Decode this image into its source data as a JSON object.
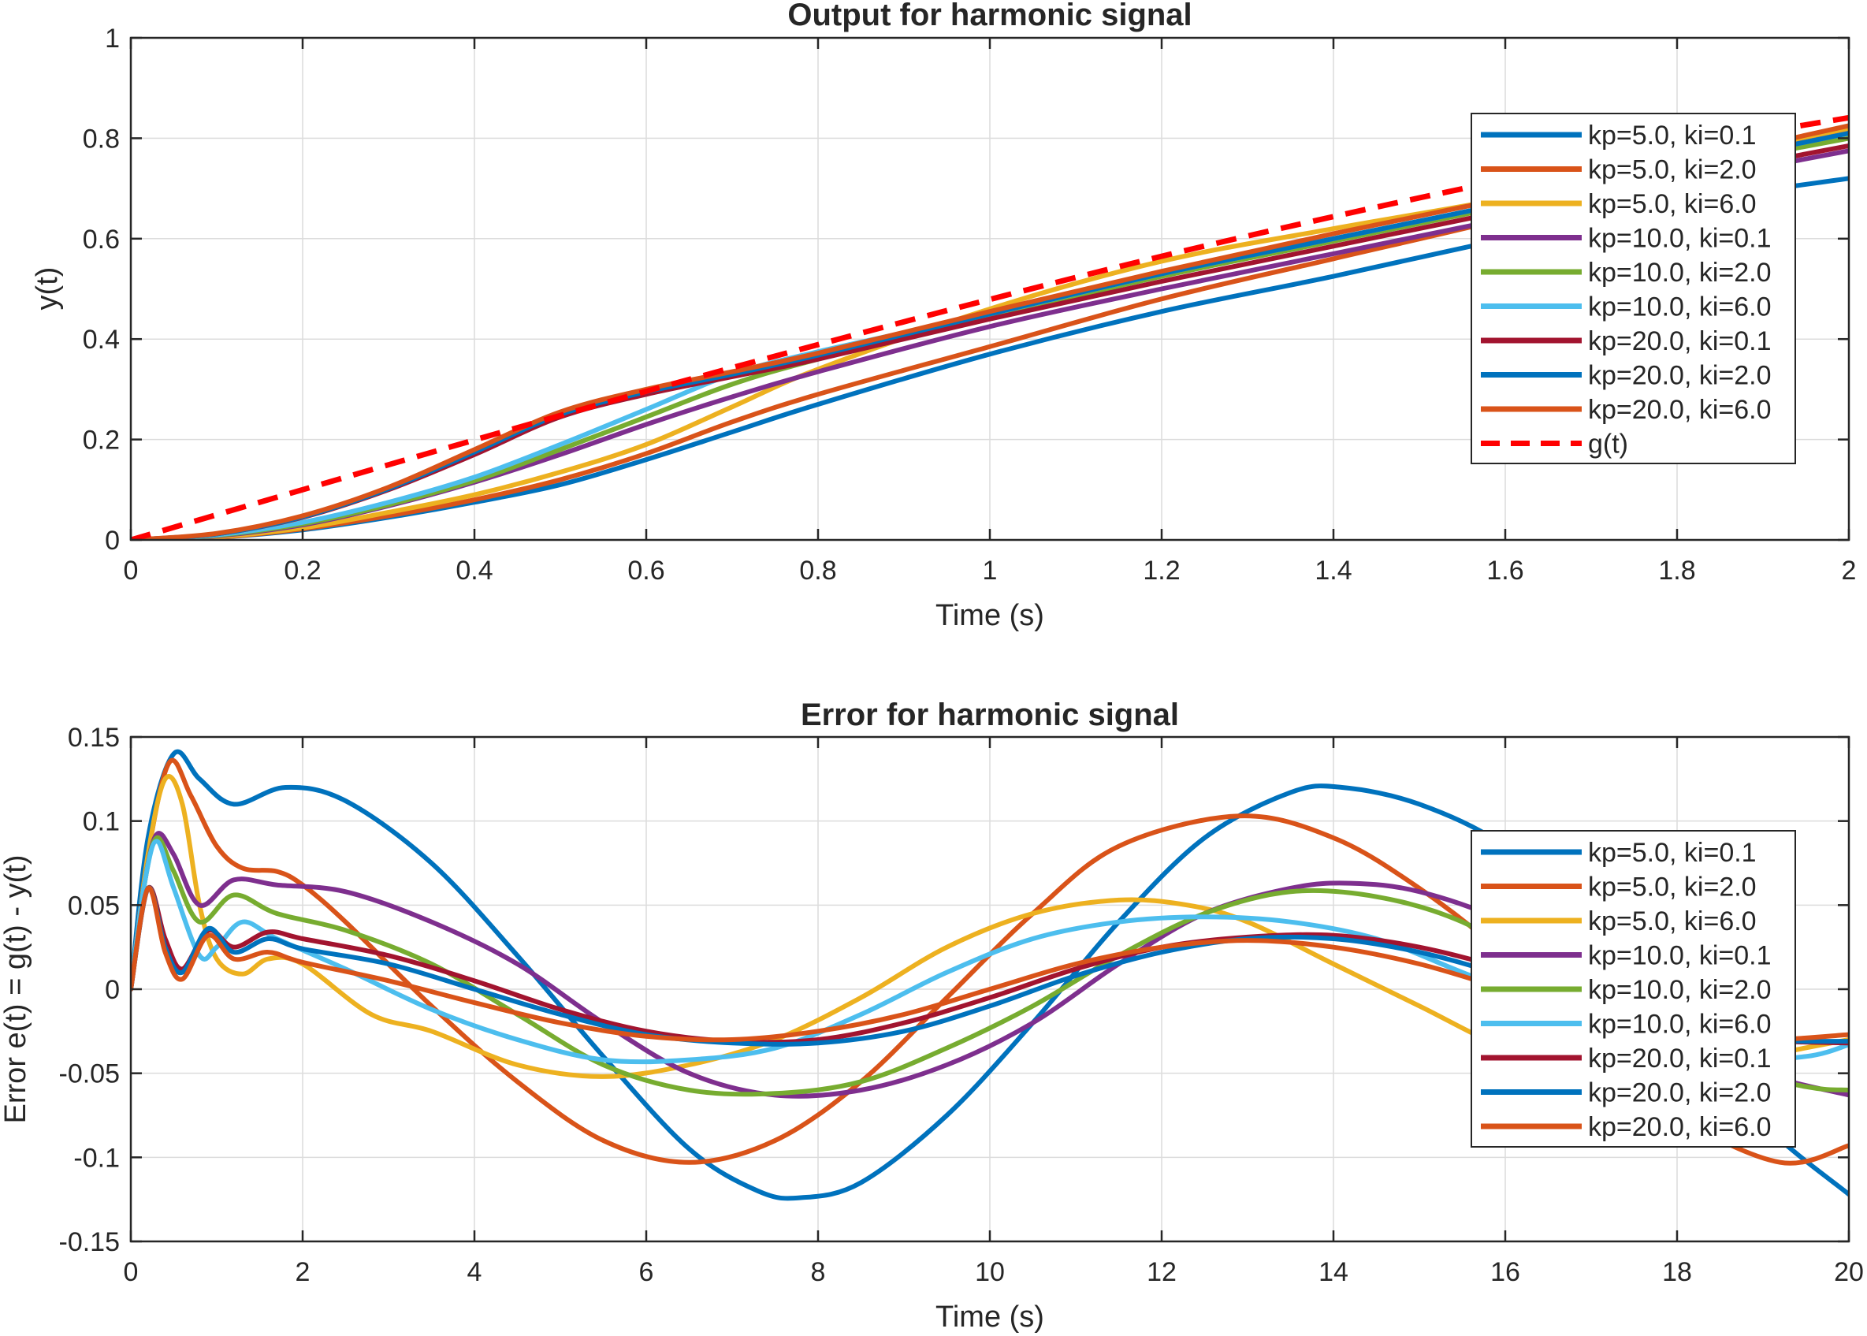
{
  "chart_data": [
    {
      "type": "line",
      "title": "Output for harmonic signal",
      "xlabel": "Time (s)",
      "ylabel": "y(t)",
      "xlim": [
        0,
        2
      ],
      "ylim": [
        0,
        1
      ],
      "xticks": [
        0,
        0.2,
        0.4,
        0.6,
        0.8,
        1,
        1.2,
        1.4,
        1.6,
        1.8,
        2
      ],
      "xtick_labels": [
        "0",
        "0.2",
        "0.4",
        "0.6",
        "0.8",
        "1",
        "1.2",
        "1.4",
        "1.6",
        "1.8",
        "2"
      ],
      "yticks": [
        0,
        0.2,
        0.4,
        0.6,
        0.8,
        1
      ],
      "ytick_labels": [
        "0",
        "0.2",
        "0.4",
        "0.6",
        "0.8",
        "1"
      ],
      "grid": true,
      "legend_position": "top-right",
      "series": [
        {
          "name": "kp=5.0, ki=0.1",
          "color": "#0072BD",
          "x": [
            0,
            0.1,
            0.2,
            0.3,
            0.4,
            0.5,
            0.6,
            0.7,
            0.8,
            1.0,
            1.2,
            1.4,
            1.6,
            1.8,
            2.0
          ],
          "y": [
            0,
            0.005,
            0.02,
            0.045,
            0.075,
            0.11,
            0.16,
            0.215,
            0.27,
            0.37,
            0.455,
            0.525,
            0.6,
            0.67,
            0.72
          ]
        },
        {
          "name": "kp=5.0, ki=2.0",
          "color": "#D95319",
          "x": [
            0,
            0.1,
            0.2,
            0.3,
            0.4,
            0.5,
            0.6,
            0.7,
            0.8,
            1.0,
            1.2,
            1.4,
            1.6,
            1.8,
            2.0
          ],
          "y": [
            0,
            0.005,
            0.022,
            0.048,
            0.08,
            0.12,
            0.172,
            0.235,
            0.29,
            0.385,
            0.48,
            0.56,
            0.64,
            0.73,
            0.815
          ]
        },
        {
          "name": "kp=5.0, ki=6.0",
          "color": "#EDB120",
          "x": [
            0,
            0.1,
            0.2,
            0.3,
            0.4,
            0.5,
            0.6,
            0.7,
            0.8,
            1.0,
            1.2,
            1.4,
            1.6,
            1.8,
            2.0
          ],
          "y": [
            0,
            0.006,
            0.024,
            0.055,
            0.09,
            0.135,
            0.19,
            0.265,
            0.34,
            0.46,
            0.555,
            0.62,
            0.68,
            0.75,
            0.82
          ]
        },
        {
          "name": "kp=10.0, ki=0.1",
          "color": "#7E2F8E",
          "x": [
            0,
            0.1,
            0.2,
            0.3,
            0.4,
            0.5,
            0.6,
            0.7,
            0.8,
            1.0,
            1.2,
            1.4,
            1.6,
            1.8,
            2.0
          ],
          "y": [
            0,
            0.008,
            0.03,
            0.068,
            0.115,
            0.17,
            0.23,
            0.285,
            0.335,
            0.425,
            0.5,
            0.57,
            0.64,
            0.71,
            0.775
          ]
        },
        {
          "name": "kp=10.0, ki=2.0",
          "color": "#77AC30",
          "x": [
            0,
            0.1,
            0.2,
            0.3,
            0.4,
            0.5,
            0.6,
            0.7,
            0.8,
            1.0,
            1.2,
            1.4,
            1.6,
            1.8,
            2.0
          ],
          "y": [
            0,
            0.009,
            0.032,
            0.07,
            0.118,
            0.18,
            0.245,
            0.31,
            0.36,
            0.445,
            0.525,
            0.595,
            0.665,
            0.735,
            0.8
          ]
        },
        {
          "name": "kp=10.0, ki=6.0",
          "color": "#4DBEEE",
          "x": [
            0,
            0.1,
            0.2,
            0.3,
            0.4,
            0.5,
            0.6,
            0.7,
            0.8,
            1.0,
            1.2,
            1.4,
            1.6,
            1.8,
            2.0
          ],
          "y": [
            0,
            0.01,
            0.035,
            0.075,
            0.125,
            0.19,
            0.26,
            0.33,
            0.375,
            0.45,
            0.53,
            0.6,
            0.67,
            0.74,
            0.81
          ]
        },
        {
          "name": "kp=20.0, ki=0.1",
          "color": "#A2142F",
          "x": [
            0,
            0.1,
            0.2,
            0.3,
            0.4,
            0.5,
            0.6,
            0.7,
            0.8,
            1.0,
            1.2,
            1.4,
            1.6,
            1.8,
            2.0
          ],
          "y": [
            0,
            0.012,
            0.045,
            0.1,
            0.17,
            0.245,
            0.29,
            0.325,
            0.36,
            0.44,
            0.515,
            0.585,
            0.655,
            0.72,
            0.785
          ]
        },
        {
          "name": "kp=20.0, ki=2.0",
          "color": "#0072BD",
          "x": [
            0,
            0.1,
            0.2,
            0.3,
            0.4,
            0.5,
            0.6,
            0.7,
            0.8,
            1.0,
            1.2,
            1.4,
            1.6,
            1.8,
            2.0
          ],
          "y": [
            0,
            0.012,
            0.046,
            0.102,
            0.175,
            0.25,
            0.295,
            0.33,
            0.368,
            0.45,
            0.53,
            0.6,
            0.67,
            0.74,
            0.81
          ]
        },
        {
          "name": "kp=20.0, ki=6.0",
          "color": "#D95319",
          "x": [
            0,
            0.1,
            0.2,
            0.3,
            0.4,
            0.5,
            0.6,
            0.7,
            0.8,
            1.0,
            1.2,
            1.4,
            1.6,
            1.8,
            2.0
          ],
          "y": [
            0,
            0.013,
            0.048,
            0.105,
            0.18,
            0.255,
            0.3,
            0.335,
            0.372,
            0.455,
            0.535,
            0.61,
            0.68,
            0.75,
            0.825
          ]
        },
        {
          "name": "g(t)",
          "color": "#FF0000",
          "dashed": true,
          "x": [
            0,
            0.2,
            0.4,
            0.6,
            0.8,
            1.0,
            1.2,
            1.4,
            1.6,
            1.8,
            2.0
          ],
          "y": [
            0,
            0.1,
            0.199,
            0.296,
            0.389,
            0.479,
            0.565,
            0.644,
            0.717,
            0.783,
            0.841
          ]
        }
      ]
    },
    {
      "type": "line",
      "title": "Error for harmonic signal",
      "xlabel": "Time (s)",
      "ylabel": "Error e(t) = g(t) - y(t)",
      "xlim": [
        0,
        20
      ],
      "ylim": [
        -0.15,
        0.15
      ],
      "xticks": [
        0,
        2,
        4,
        6,
        8,
        10,
        12,
        14,
        16,
        18,
        20
      ],
      "xtick_labels": [
        "0",
        "2",
        "4",
        "6",
        "8",
        "10",
        "12",
        "14",
        "16",
        "18",
        "20"
      ],
      "yticks": [
        -0.15,
        -0.1,
        -0.05,
        0,
        0.05,
        0.1,
        0.15
      ],
      "ytick_labels": [
        "-0.15",
        "-0.1",
        "-0.05",
        "0",
        "0.05",
        "0.1",
        "0.15"
      ],
      "grid": true,
      "legend_position": "right",
      "series": [
        {
          "name": "kp=5.0, ki=0.1",
          "color": "#0072BD",
          "x": [
            0,
            0.2,
            0.5,
            0.8,
            1.2,
            1.8,
            2.5,
            3.5,
            4.5,
            5.5,
            6.5,
            7.3,
            7.8,
            8.5,
            9.5,
            10.5,
            11.5,
            12.5,
            13.5,
            14.1,
            15,
            16,
            17,
            18,
            19,
            20
          ],
          "y": [
            0,
            0.09,
            0.14,
            0.125,
            0.11,
            0.12,
            0.112,
            0.075,
            0.02,
            -0.04,
            -0.095,
            -0.12,
            -0.124,
            -0.115,
            -0.075,
            -0.02,
            0.04,
            0.09,
            0.117,
            0.12,
            0.11,
            0.085,
            0.04,
            -0.02,
            -0.08,
            -0.122
          ]
        },
        {
          "name": "kp=5.0, ki=2.0",
          "color": "#D95319",
          "x": [
            0,
            0.2,
            0.45,
            0.7,
            1.0,
            1.3,
            1.7,
            2.0,
            2.5,
            3.5,
            4.5,
            5.5,
            6.5,
            7.5,
            8.5,
            9.5,
            10.5,
            11.5,
            12.9,
            14,
            15,
            16,
            17,
            18,
            19.2,
            20
          ],
          "y": [
            0,
            0.08,
            0.135,
            0.115,
            0.085,
            0.072,
            0.07,
            0.062,
            0.04,
            -0.01,
            -0.055,
            -0.09,
            -0.103,
            -0.09,
            -0.055,
            -0.005,
            0.045,
            0.085,
            0.103,
            0.09,
            0.06,
            0.02,
            -0.03,
            -0.075,
            -0.103,
            -0.093
          ]
        },
        {
          "name": "kp=5.0, ki=6.0",
          "color": "#EDB120",
          "x": [
            0,
            0.2,
            0.4,
            0.6,
            0.8,
            1.0,
            1.3,
            1.6,
            2.0,
            2.8,
            3.5,
            4.5,
            5.5,
            6.5,
            7.5,
            8.5,
            9.5,
            10.5,
            11.5,
            12.3,
            13,
            14,
            15,
            16,
            17,
            18,
            19,
            20
          ],
          "y": [
            0,
            0.08,
            0.125,
            0.11,
            0.05,
            0.018,
            0.009,
            0.018,
            0.015,
            -0.015,
            -0.025,
            -0.045,
            -0.052,
            -0.045,
            -0.03,
            -0.005,
            0.025,
            0.045,
            0.053,
            0.05,
            0.04,
            0.015,
            -0.01,
            -0.035,
            -0.05,
            -0.052,
            -0.04,
            -0.03
          ]
        },
        {
          "name": "kp=10.0, ki=0.1",
          "color": "#7E2F8E",
          "x": [
            0,
            0.15,
            0.3,
            0.5,
            0.8,
            1.2,
            1.7,
            2.5,
            3.5,
            4.5,
            5.5,
            6.5,
            7.5,
            8.5,
            9.5,
            10.5,
            11.5,
            12.5,
            13.5,
            14.2,
            15,
            16,
            17,
            18,
            19,
            20
          ],
          "y": [
            0,
            0.06,
            0.092,
            0.08,
            0.05,
            0.065,
            0.062,
            0.058,
            0.04,
            0.015,
            -0.02,
            -0.05,
            -0.063,
            -0.06,
            -0.045,
            -0.02,
            0.015,
            0.045,
            0.06,
            0.063,
            0.058,
            0.04,
            0.01,
            -0.025,
            -0.05,
            -0.063
          ]
        },
        {
          "name": "kp=10.0, ki=2.0",
          "color": "#77AC30",
          "x": [
            0,
            0.15,
            0.3,
            0.5,
            0.8,
            1.2,
            1.7,
            2.5,
            3.5,
            4.5,
            5.5,
            6.5,
            7.5,
            8.5,
            9.5,
            10.5,
            11.5,
            12.5,
            13.5,
            14.5,
            15.5,
            16.5,
            17.5,
            18.5,
            19.5,
            20
          ],
          "y": [
            0,
            0.06,
            0.09,
            0.07,
            0.04,
            0.056,
            0.045,
            0.035,
            0.015,
            -0.015,
            -0.045,
            -0.06,
            -0.062,
            -0.055,
            -0.035,
            -0.01,
            0.02,
            0.045,
            0.058,
            0.055,
            0.04,
            0.01,
            -0.02,
            -0.045,
            -0.058,
            -0.06
          ]
        },
        {
          "name": "kp=10.0, ki=6.0",
          "color": "#4DBEEE",
          "x": [
            0,
            0.15,
            0.3,
            0.5,
            0.8,
            1.0,
            1.3,
            1.7,
            2.5,
            3.5,
            4.5,
            5.5,
            6.5,
            7.5,
            8.5,
            9.5,
            10.5,
            11.5,
            12.5,
            13.5,
            14.5,
            15.5,
            16.5,
            17.5,
            18.5,
            19.5,
            20
          ],
          "y": [
            0,
            0.06,
            0.088,
            0.06,
            0.02,
            0.025,
            0.04,
            0.03,
            0.012,
            -0.012,
            -0.03,
            -0.042,
            -0.042,
            -0.035,
            -0.015,
            0.01,
            0.03,
            0.04,
            0.043,
            0.04,
            0.03,
            0.01,
            -0.01,
            -0.03,
            -0.042,
            -0.04,
            -0.033
          ]
        },
        {
          "name": "kp=20.0, ki=0.1",
          "color": "#A2142F",
          "x": [
            0,
            0.2,
            0.4,
            0.6,
            0.9,
            1.2,
            1.6,
            2.0,
            3.0,
            4.0,
            5.0,
            6.0,
            7.0,
            8.0,
            9.0,
            10.0,
            11.0,
            12.0,
            13.0,
            14.0,
            15.0,
            16.0,
            17.0,
            18.0,
            19.0,
            20.0
          ],
          "y": [
            0,
            0.06,
            0.03,
            0.012,
            0.035,
            0.025,
            0.034,
            0.03,
            0.02,
            0.005,
            -0.012,
            -0.025,
            -0.031,
            -0.03,
            -0.02,
            -0.005,
            0.012,
            0.025,
            0.031,
            0.032,
            0.025,
            0.012,
            -0.005,
            -0.02,
            -0.03,
            -0.032
          ]
        },
        {
          "name": "kp=20.0, ki=2.0",
          "color": "#0072BD",
          "x": [
            0,
            0.2,
            0.4,
            0.6,
            0.9,
            1.2,
            1.6,
            2.0,
            3.0,
            4.0,
            5.0,
            6.0,
            7.0,
            8.0,
            9.0,
            10.0,
            11.0,
            12.0,
            13.0,
            14.0,
            15.0,
            16.0,
            17.0,
            18.0,
            19.0,
            20.0
          ],
          "y": [
            0,
            0.06,
            0.025,
            0.01,
            0.036,
            0.022,
            0.03,
            0.024,
            0.015,
            0.0,
            -0.015,
            -0.027,
            -0.032,
            -0.032,
            -0.025,
            -0.01,
            0.008,
            0.022,
            0.03,
            0.03,
            0.022,
            0.008,
            -0.008,
            -0.022,
            -0.03,
            -0.031
          ]
        },
        {
          "name": "kp=20.0, ki=6.0",
          "color": "#D95319",
          "x": [
            0,
            0.2,
            0.4,
            0.6,
            0.9,
            1.2,
            1.6,
            2.0,
            3.0,
            4.0,
            5.0,
            6.0,
            7.0,
            8.0,
            9.0,
            10.0,
            11.0,
            12.0,
            13.0,
            14.0,
            15.0,
            16.0,
            17.0,
            18.0,
            19.0,
            20.0
          ],
          "y": [
            0,
            0.06,
            0.022,
            0.006,
            0.032,
            0.018,
            0.022,
            0.016,
            0.005,
            -0.008,
            -0.02,
            -0.028,
            -0.03,
            -0.025,
            -0.015,
            0.0,
            0.015,
            0.025,
            0.029,
            0.025,
            0.015,
            0.0,
            -0.015,
            -0.025,
            -0.03,
            -0.027
          ]
        }
      ]
    }
  ]
}
